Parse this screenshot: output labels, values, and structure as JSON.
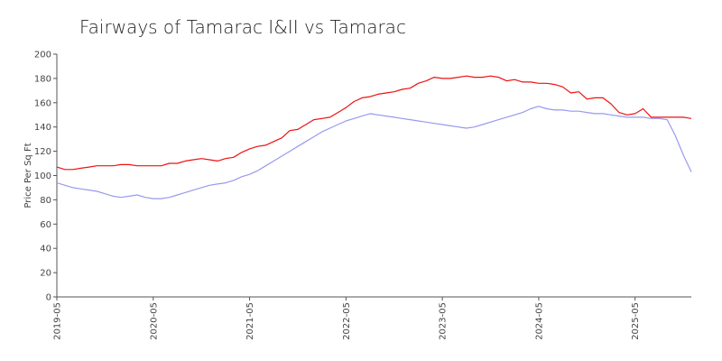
{
  "chart_data": {
    "type": "line",
    "title": "Fairways of Tamarac I&II vs Tamarac",
    "xlabel": "",
    "ylabel": "Price Per Sq Ft",
    "ylim": [
      0,
      200
    ],
    "yticks": [
      0,
      20,
      40,
      60,
      80,
      100,
      120,
      140,
      160,
      180,
      200
    ],
    "xtick_labels": [
      "2019-05",
      "2020-05",
      "2021-05",
      "2022-05",
      "2023-05",
      "2024-05",
      "2025-05"
    ],
    "x": [
      "2019-05",
      "2019-06",
      "2019-07",
      "2019-08",
      "2019-09",
      "2019-10",
      "2019-11",
      "2019-12",
      "2020-01",
      "2020-02",
      "2020-03",
      "2020-04",
      "2020-05",
      "2020-06",
      "2020-07",
      "2020-08",
      "2020-09",
      "2020-10",
      "2020-11",
      "2020-12",
      "2021-01",
      "2021-02",
      "2021-03",
      "2021-04",
      "2021-05",
      "2021-06",
      "2021-07",
      "2021-08",
      "2021-09",
      "2021-10",
      "2021-11",
      "2021-12",
      "2022-01",
      "2022-02",
      "2022-03",
      "2022-04",
      "2022-05",
      "2022-06",
      "2022-07",
      "2022-08",
      "2022-09",
      "2022-10",
      "2022-11",
      "2022-12",
      "2023-01",
      "2023-02",
      "2023-03",
      "2023-04",
      "2023-05",
      "2023-06",
      "2023-07",
      "2023-08",
      "2023-09",
      "2023-10",
      "2023-11",
      "2023-12",
      "2024-01",
      "2024-02",
      "2024-03",
      "2024-04",
      "2024-05",
      "2024-06",
      "2024-07",
      "2024-08",
      "2024-09",
      "2024-10",
      "2024-11",
      "2024-12",
      "2025-01",
      "2025-02",
      "2025-03",
      "2025-04",
      "2025-05",
      "2025-06",
      "2025-07",
      "2025-08",
      "2025-09",
      "2025-10",
      "2025-11",
      "2025-12"
    ],
    "series": [
      {
        "color": "#ee1111",
        "values": [
          107,
          105,
          105,
          106,
          107,
          108,
          108,
          108,
          109,
          109,
          108,
          108,
          108,
          108,
          110,
          110,
          112,
          113,
          114,
          113,
          112,
          114,
          115,
          119,
          122,
          124,
          125,
          128,
          131,
          137,
          138,
          142,
          146,
          147,
          148,
          152,
          156,
          161,
          164,
          165,
          167,
          168,
          169,
          171,
          172,
          176,
          178,
          181,
          180,
          180,
          181,
          182,
          181,
          181,
          182,
          181,
          178,
          179,
          177,
          177,
          176,
          176,
          175,
          173,
          168,
          169,
          163,
          164,
          164,
          159,
          152,
          150,
          151,
          155,
          148,
          148,
          148,
          148,
          148,
          147
        ]
      },
      {
        "color": "#9999ee",
        "values": [
          94,
          92,
          90,
          89,
          88,
          87,
          85,
          83,
          82,
          83,
          84,
          82,
          81,
          81,
          82,
          84,
          86,
          88,
          90,
          92,
          93,
          94,
          96,
          99,
          101,
          104,
          108,
          112,
          116,
          120,
          124,
          128,
          132,
          136,
          139,
          142,
          145,
          147,
          149,
          151,
          150,
          149,
          148,
          147,
          146,
          145,
          144,
          143,
          142,
          141,
          140,
          139,
          140,
          142,
          144,
          146,
          148,
          150,
          152,
          155,
          157,
          155,
          154,
          154,
          153,
          153,
          152,
          151,
          151,
          150,
          149,
          148,
          148,
          148,
          147,
          147,
          146,
          133,
          117,
          103
        ]
      }
    ],
    "legend": "none",
    "grid": false
  }
}
